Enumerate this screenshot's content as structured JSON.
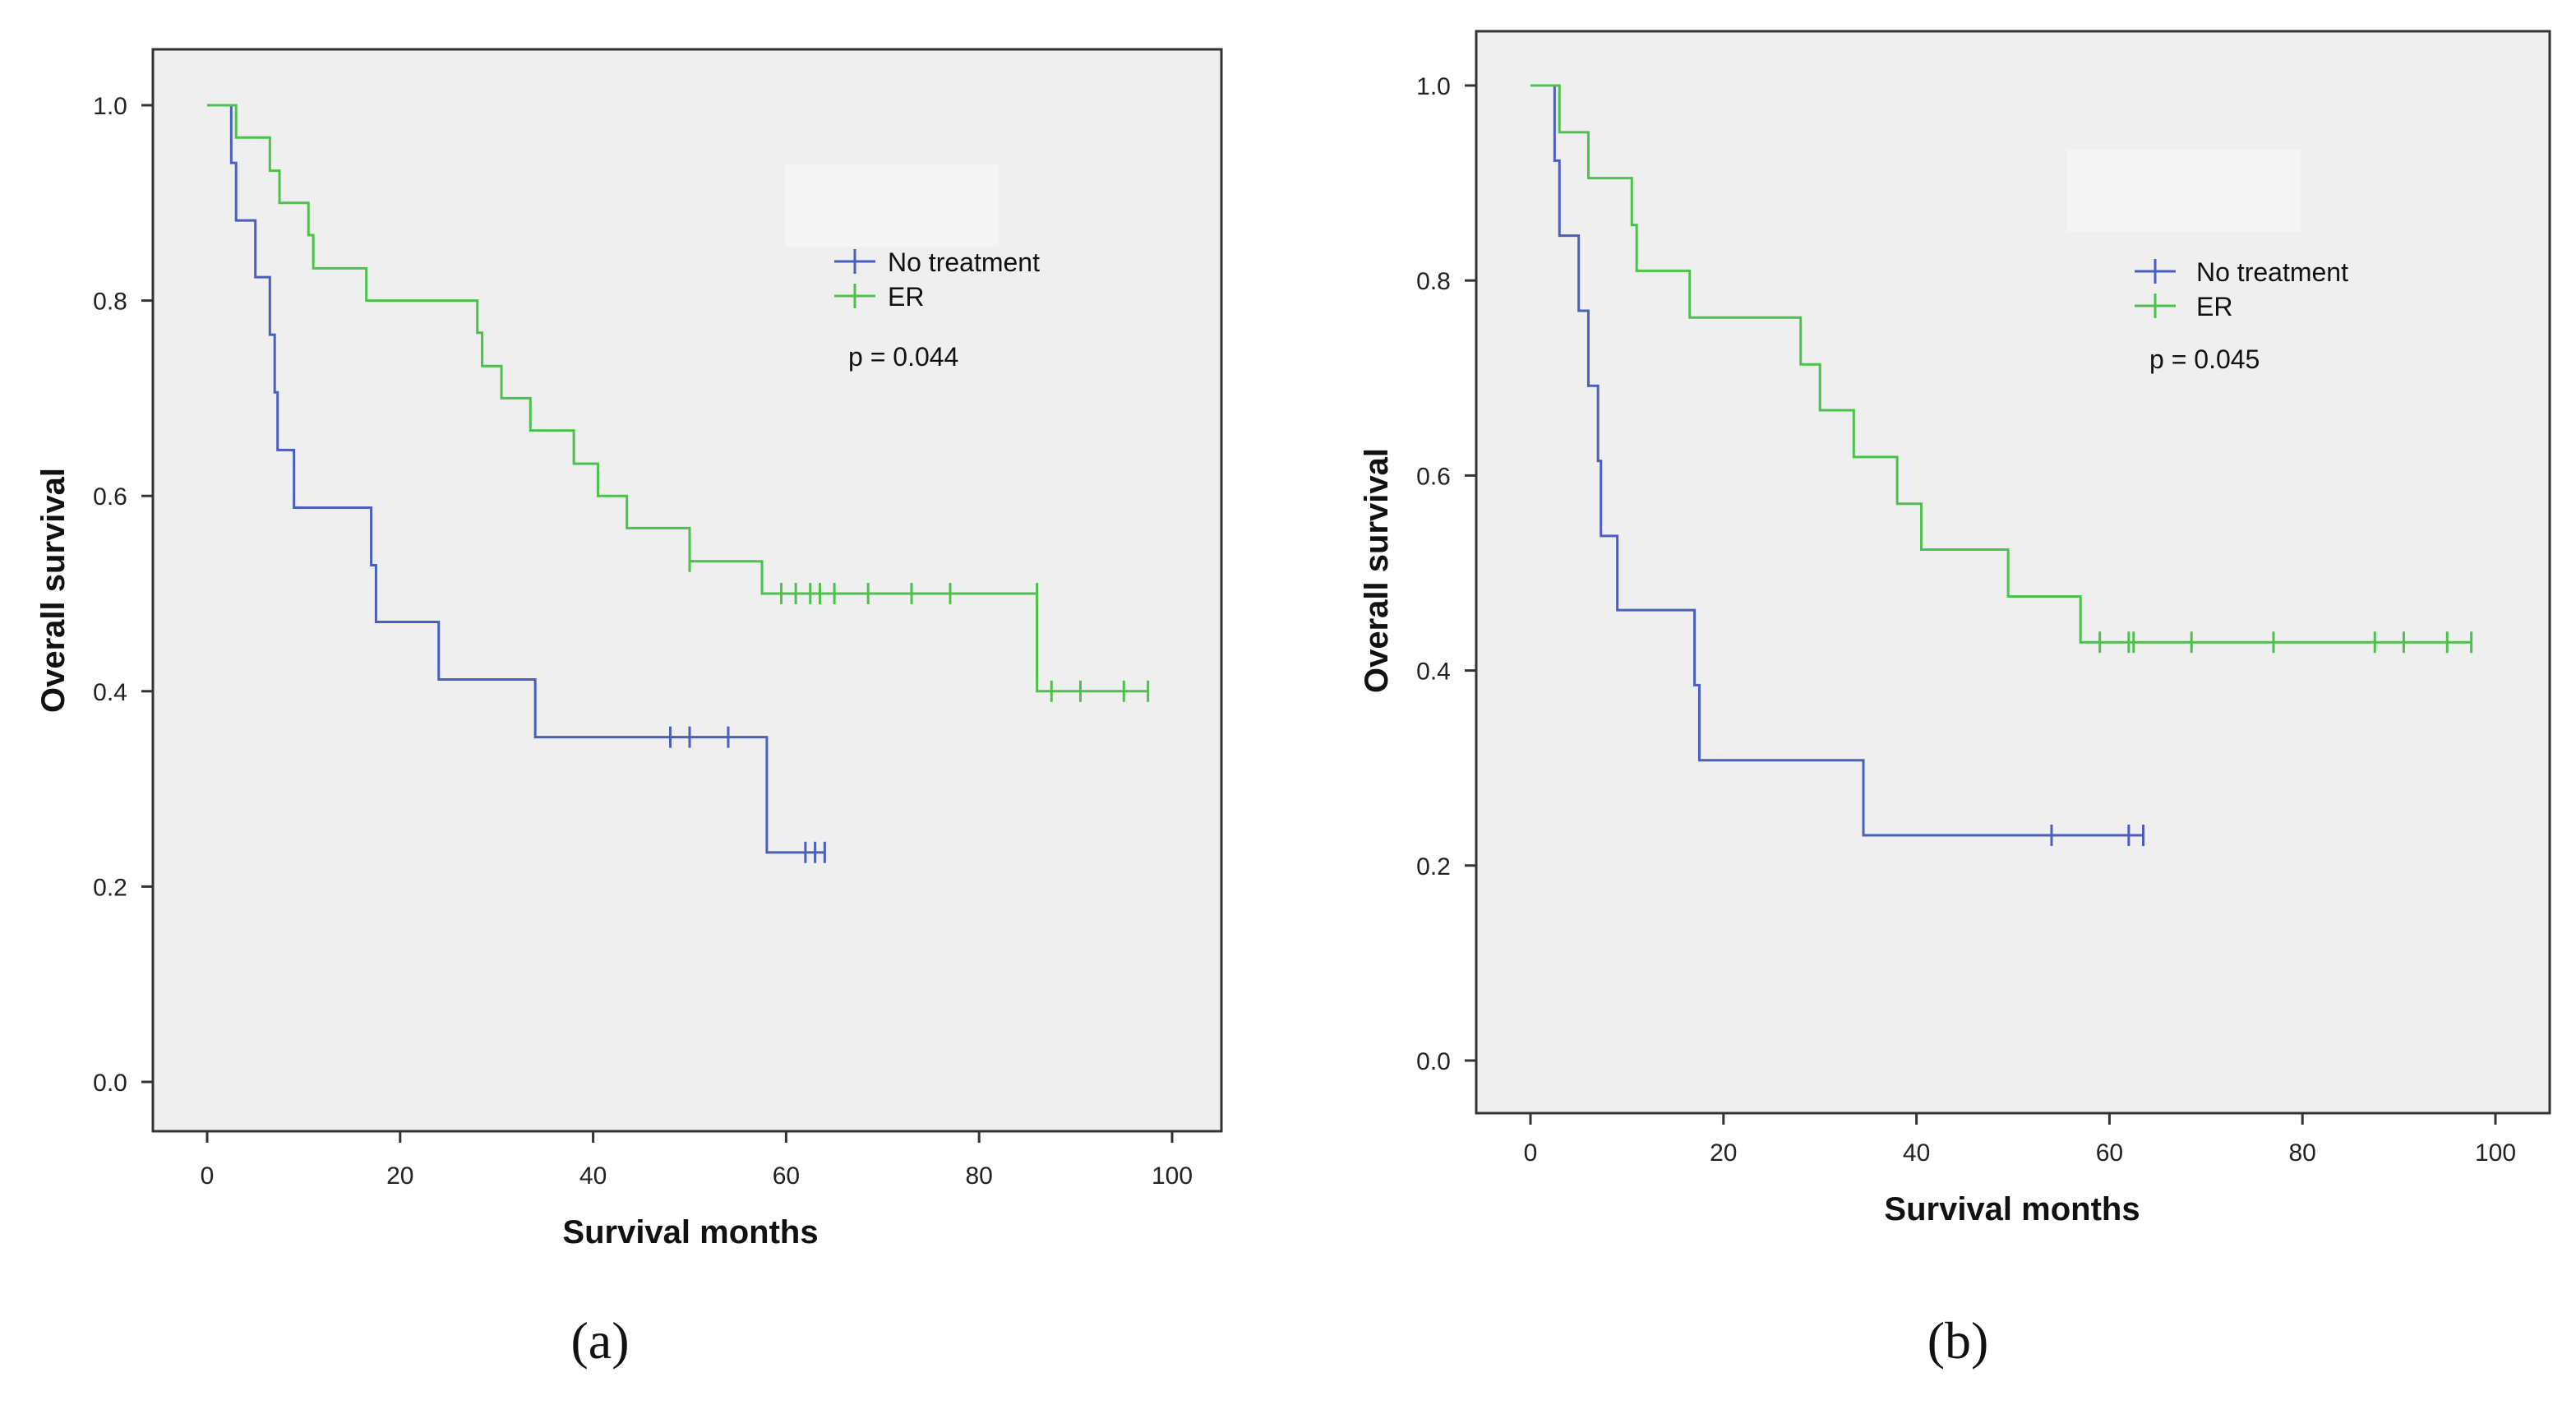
{
  "chart_data": [
    {
      "type": "line",
      "subtype": "kaplan-meier",
      "panel_label": "(a)",
      "xlabel": "Survival months",
      "ylabel": "Overall survival",
      "xlim": [
        0,
        100
      ],
      "ylim": [
        0,
        1.0
      ],
      "x_ticks": [
        "0",
        "20",
        "40",
        "60",
        "80",
        "100"
      ],
      "y_ticks": [
        "0.0",
        "0.2",
        "0.4",
        "0.6",
        "0.8",
        "1.0"
      ],
      "grid": false,
      "legend_position": "top-right",
      "annotation": "p = 0.044",
      "series": [
        {
          "name": "No treatment",
          "color": "#4a5fbd",
          "steps": [
            [
              0,
              1.0
            ],
            [
              2.5,
              0.941
            ],
            [
              3,
              0.882
            ],
            [
              5,
              0.824
            ],
            [
              6.5,
              0.765
            ],
            [
              7,
              0.706
            ],
            [
              7.3,
              0.647
            ],
            [
              9,
              0.588
            ],
            [
              17,
              0.529
            ],
            [
              17.5,
              0.471
            ],
            [
              24,
              0.412
            ],
            [
              34,
              0.353
            ],
            [
              58,
              0.235
            ],
            [
              64,
              0.235
            ]
          ],
          "censored": [
            [
              48,
              0.353
            ],
            [
              50,
              0.353
            ],
            [
              54,
              0.353
            ],
            [
              62,
              0.235
            ],
            [
              63,
              0.235
            ],
            [
              64,
              0.235
            ]
          ]
        },
        {
          "name": "ER",
          "color": "#4cc24c",
          "steps": [
            [
              0,
              1.0
            ],
            [
              3,
              0.967
            ],
            [
              6.5,
              0.933
            ],
            [
              7.5,
              0.9
            ],
            [
              10.5,
              0.867
            ],
            [
              11,
              0.833
            ],
            [
              16.5,
              0.8
            ],
            [
              28,
              0.767
            ],
            [
              28.5,
              0.733
            ],
            [
              30.5,
              0.7
            ],
            [
              33.5,
              0.667
            ],
            [
              38,
              0.633
            ],
            [
              40.5,
              0.6
            ],
            [
              43.5,
              0.567
            ],
            [
              50,
              0.533
            ],
            [
              57.5,
              0.5
            ],
            [
              86,
              0.4
            ],
            [
              97.5,
              0.4
            ]
          ],
          "censored": [
            [
              50,
              0.533
            ],
            [
              59.5,
              0.5
            ],
            [
              61,
              0.5
            ],
            [
              62.5,
              0.5
            ],
            [
              63.5,
              0.5
            ],
            [
              65,
              0.5
            ],
            [
              68.5,
              0.5
            ],
            [
              73,
              0.5
            ],
            [
              77,
              0.5
            ],
            [
              86,
              0.5
            ],
            [
              87.5,
              0.4
            ],
            [
              90.5,
              0.4
            ],
            [
              95,
              0.4
            ],
            [
              97.5,
              0.4
            ]
          ]
        }
      ]
    },
    {
      "type": "line",
      "subtype": "kaplan-meier",
      "panel_label": "(b)",
      "xlabel": "Survival months",
      "ylabel": "Overall survival",
      "xlim": [
        0,
        100
      ],
      "ylim": [
        0,
        1.0
      ],
      "x_ticks": [
        "0",
        "20",
        "40",
        "60",
        "80",
        "100"
      ],
      "y_ticks": [
        "0.0",
        "0.2",
        "0.4",
        "0.6",
        "0.8",
        "1.0"
      ],
      "grid": false,
      "legend_position": "top-right",
      "annotation": "p = 0.045",
      "series": [
        {
          "name": "No treatment",
          "color": "#4a5fbd",
          "steps": [
            [
              0,
              1.0
            ],
            [
              2.5,
              0.923
            ],
            [
              3,
              0.846
            ],
            [
              5,
              0.769
            ],
            [
              6,
              0.692
            ],
            [
              7,
              0.615
            ],
            [
              7.3,
              0.538
            ],
            [
              9,
              0.462
            ],
            [
              17,
              0.385
            ],
            [
              17.5,
              0.308
            ],
            [
              34.5,
              0.231
            ],
            [
              63.5,
              0.231
            ]
          ],
          "censored": [
            [
              54,
              0.231
            ],
            [
              62,
              0.231
            ],
            [
              63.5,
              0.231
            ]
          ]
        },
        {
          "name": "ER",
          "color": "#4cc24c",
          "steps": [
            [
              0,
              1.0
            ],
            [
              3,
              0.952
            ],
            [
              6,
              0.905
            ],
            [
              10.5,
              0.857
            ],
            [
              11,
              0.81
            ],
            [
              16.5,
              0.762
            ],
            [
              28,
              0.714
            ],
            [
              30,
              0.667
            ],
            [
              33.5,
              0.619
            ],
            [
              38,
              0.571
            ],
            [
              40.5,
              0.524
            ],
            [
              49.5,
              0.476
            ],
            [
              57,
              0.429
            ],
            [
              97.5,
              0.429
            ]
          ],
          "censored": [
            [
              59,
              0.429
            ],
            [
              62,
              0.429
            ],
            [
              62.5,
              0.429
            ],
            [
              68.5,
              0.429
            ],
            [
              77,
              0.429
            ],
            [
              87.5,
              0.429
            ],
            [
              90.5,
              0.429
            ],
            [
              95,
              0.429
            ],
            [
              97.5,
              0.429
            ]
          ]
        }
      ]
    }
  ]
}
